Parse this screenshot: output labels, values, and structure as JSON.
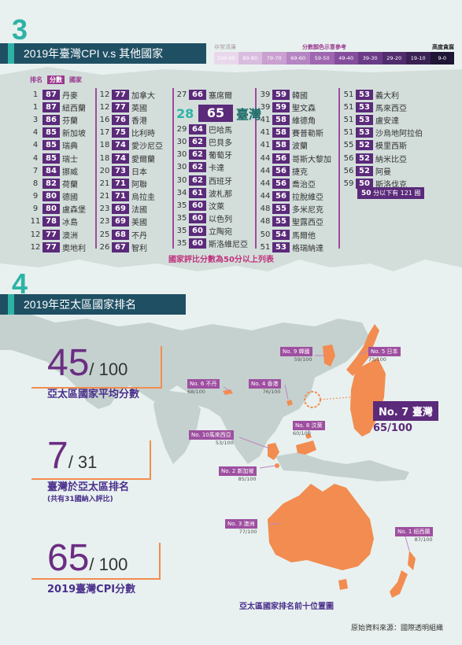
{
  "section3": {
    "number": "3",
    "title": "2019年臺灣CPI v.s 其他國家"
  },
  "legend": {
    "low_label": "非常清廉",
    "title": "分數顏色示意參考",
    "high_label": "高度貪腐",
    "bins": [
      "100-90",
      "89-80",
      "79-70",
      "69-60",
      "59-50",
      "49-40",
      "39-30",
      "29-20",
      "19-10",
      "9-0"
    ],
    "colors": [
      "#e9d8ec",
      "#d9bddf",
      "#c9a0d0",
      "#b584c2",
      "#9e66b0",
      "#844d9b",
      "#6b3a86",
      "#512c6d",
      "#3a2154",
      "#1f1636"
    ]
  },
  "table": {
    "headers": {
      "rank": "排名",
      "score": "分數",
      "country": "國家"
    },
    "columns": [
      [
        {
          "rank": "1",
          "score": "87",
          "name": "丹麥"
        },
        {
          "rank": "1",
          "score": "87",
          "name": "紐西蘭"
        },
        {
          "rank": "3",
          "score": "86",
          "name": "芬蘭"
        },
        {
          "rank": "4",
          "score": "85",
          "name": "新加坡"
        },
        {
          "rank": "4",
          "score": "85",
          "name": "瑞典"
        },
        {
          "rank": "4",
          "score": "85",
          "name": "瑞士"
        },
        {
          "rank": "7",
          "score": "84",
          "name": "挪威"
        },
        {
          "rank": "8",
          "score": "82",
          "name": "荷蘭"
        },
        {
          "rank": "9",
          "score": "80",
          "name": "德國"
        },
        {
          "rank": "9",
          "score": "80",
          "name": "盧森堡"
        },
        {
          "rank": "11",
          "score": "78",
          "name": "冰島"
        },
        {
          "rank": "12",
          "score": "77",
          "name": "澳洲"
        },
        {
          "rank": "12",
          "score": "77",
          "name": "奧地利"
        }
      ],
      [
        {
          "rank": "12",
          "score": "77",
          "name": "加拿大"
        },
        {
          "rank": "12",
          "score": "77",
          "name": "英國"
        },
        {
          "rank": "16",
          "score": "76",
          "name": "香港"
        },
        {
          "rank": "17",
          "score": "75",
          "name": "比利時"
        },
        {
          "rank": "18",
          "score": "74",
          "name": "愛沙尼亞"
        },
        {
          "rank": "18",
          "score": "74",
          "name": "愛爾蘭"
        },
        {
          "rank": "20",
          "score": "73",
          "name": "日本"
        },
        {
          "rank": "21",
          "score": "71",
          "name": "阿聯"
        },
        {
          "rank": "21",
          "score": "71",
          "name": "烏拉圭"
        },
        {
          "rank": "23",
          "score": "69",
          "name": "法國"
        },
        {
          "rank": "23",
          "score": "69",
          "name": "美國"
        },
        {
          "rank": "25",
          "score": "68",
          "name": "不丹"
        },
        {
          "rank": "26",
          "score": "67",
          "name": "智利"
        }
      ],
      [
        {
          "rank": "27",
          "score": "66",
          "name": "塞席爾"
        },
        {
          "rank": "29",
          "score": "64",
          "name": "巴哈馬"
        },
        {
          "rank": "30",
          "score": "62",
          "name": "巴貝多"
        },
        {
          "rank": "30",
          "score": "62",
          "name": "葡萄牙"
        },
        {
          "rank": "30",
          "score": "62",
          "name": "卡達"
        },
        {
          "rank": "30",
          "score": "62",
          "name": "西班牙"
        },
        {
          "rank": "34",
          "score": "61",
          "name": "波札那"
        },
        {
          "rank": "35",
          "score": "60",
          "name": "汶萊"
        },
        {
          "rank": "35",
          "score": "60",
          "name": "以色列"
        },
        {
          "rank": "35",
          "score": "60",
          "name": "立陶宛"
        },
        {
          "rank": "35",
          "score": "60",
          "name": "斯洛維尼亞"
        }
      ],
      [
        {
          "rank": "39",
          "score": "59",
          "name": "韓國"
        },
        {
          "rank": "39",
          "score": "59",
          "name": "聖文森"
        },
        {
          "rank": "41",
          "score": "58",
          "name": "維德角"
        },
        {
          "rank": "41",
          "score": "58",
          "name": "賽普勒斯"
        },
        {
          "rank": "41",
          "score": "58",
          "name": "波蘭"
        },
        {
          "rank": "44",
          "score": "56",
          "name": "哥斯大黎加"
        },
        {
          "rank": "44",
          "score": "56",
          "name": "捷克"
        },
        {
          "rank": "44",
          "score": "56",
          "name": "喬治亞"
        },
        {
          "rank": "44",
          "score": "56",
          "name": "拉脫維亞"
        },
        {
          "rank": "48",
          "score": "55",
          "name": "多米尼克"
        },
        {
          "rank": "48",
          "score": "55",
          "name": "聖露西亞"
        },
        {
          "rank": "50",
          "score": "54",
          "name": "馬爾他"
        },
        {
          "rank": "51",
          "score": "53",
          "name": "格瑞納達"
        }
      ],
      [
        {
          "rank": "51",
          "score": "53",
          "name": "義大利"
        },
        {
          "rank": "51",
          "score": "53",
          "name": "馬來西亞"
        },
        {
          "rank": "51",
          "score": "53",
          "name": "盧安達"
        },
        {
          "rank": "51",
          "score": "53",
          "name": "沙烏地阿拉伯"
        },
        {
          "rank": "55",
          "score": "52",
          "name": "模里西斯"
        },
        {
          "rank": "56",
          "score": "52",
          "name": "納米比亞"
        },
        {
          "rank": "56",
          "score": "52",
          "name": "阿曼"
        },
        {
          "rank": "59",
          "score": "50",
          "name": "斯洛伐克"
        }
      ]
    ],
    "taiwan": {
      "rank": "28",
      "score": "65",
      "name": "臺灣"
    },
    "below50_number": "50",
    "below50_text": "分以下有 121 國",
    "note": "國家評比分數為50分以上列表"
  },
  "section4": {
    "number": "4",
    "title": "2019年亞太區國家排名"
  },
  "stats": [
    {
      "value": "45",
      "denom": "/ 100",
      "label": "亞太區國家平均分數",
      "sub": ""
    },
    {
      "value": "7",
      "denom": "/ 31",
      "label": "臺灣於亞太區排名",
      "sub": "(共有31國納入評比)"
    },
    {
      "value": "65",
      "denom": "/ 100",
      "label": "2019臺灣CPI分數",
      "sub": ""
    }
  ],
  "map_labels": [
    {
      "tag": "No. 9  韓國",
      "val": "59/100"
    },
    {
      "tag": "No. 5  日本",
      "val": "73/100"
    },
    {
      "tag": "No. 6  不丹",
      "val": "68/100"
    },
    {
      "tag": "No. 4  香港",
      "val": "76/100"
    },
    {
      "tag": "No. 10馬來西亞",
      "val": "53/100"
    },
    {
      "tag": "No. 8  汶萊",
      "val": "60/100"
    },
    {
      "tag": "No. 2  新加坡",
      "val": "85/100"
    },
    {
      "tag": "No. 3  澳洲",
      "val": "77/100"
    },
    {
      "tag": "No. 1  紐西蘭",
      "val": "87/100"
    }
  ],
  "taiwan_label": {
    "tag": "No. 7  臺灣",
    "val": "65/100"
  },
  "map_caption": "亞太區國家排名前十位置圖",
  "source": "原始資料來源：國際透明組織"
}
